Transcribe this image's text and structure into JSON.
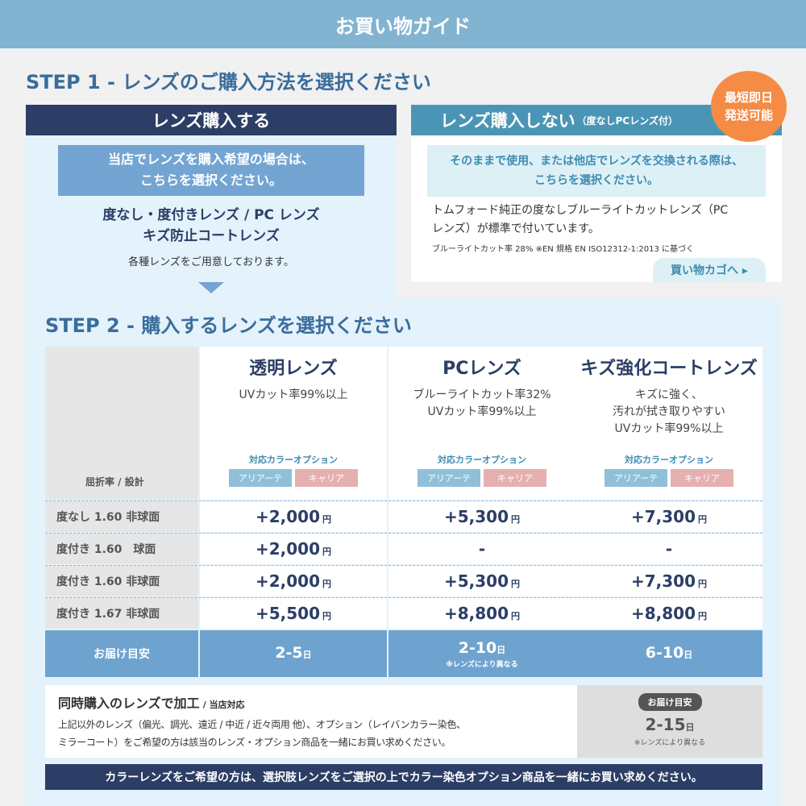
{
  "header": {
    "title": "お買い物ガイド"
  },
  "step1": {
    "title": "STEP 1 - レンズのご購入方法を選択ください",
    "left": {
      "heading": "レンズ購入する",
      "box_line1": "当店でレンズを購入希望の場合は、",
      "box_line2": "こちらを選択ください。",
      "types_line1": "度なし・度付きレンズ / PC レンズ",
      "types_line2": "キズ防止コートレンズ",
      "note": "各種レンズをご用意しております。"
    },
    "right": {
      "heading": "レンズ購入しない",
      "heading_sub": "（度なしPCレンズ付）",
      "badge_line1": "最短即日",
      "badge_line2": "発送可能",
      "box_line1": "そのままで使用、または他店でレンズを交換される際は、",
      "box_line2": "こちらを選択ください。",
      "desc_line1": "トムフォード純正の度なしブルーライトカットレンズ（PC",
      "desc_line2": "レンズ）が標準で付いています。",
      "fine": "ブルーライトカット率 28% ※EN 規格 EN ISO12312-1:2013 に基づく",
      "cart_button": "買い物カゴへ ▸"
    }
  },
  "step2": {
    "title": "STEP 2 - 購入するレンズを選択ください",
    "label_header": "屈折率 / 設計",
    "color_option_label": "対応カラーオプション",
    "color_tags": [
      "アリアーテ",
      "キャリア"
    ],
    "yen": "円",
    "day": "日",
    "columns": [
      {
        "title": "透明レンズ",
        "desc": [
          "UVカット率99%以上"
        ]
      },
      {
        "title": "PCレンズ",
        "desc": [
          "ブルーライトカット率32%",
          "UVカット率99%以上"
        ]
      },
      {
        "title": "キズ強化コートレンズ",
        "desc": [
          "キズに強く、",
          "汚れが拭き取りやすい",
          "UVカット率99%以上"
        ]
      }
    ],
    "rows": [
      {
        "label": "度なし 1.60 非球面",
        "values": [
          "+2,000",
          "+5,300",
          "+7,300"
        ]
      },
      {
        "label": "度付き 1.60　球面",
        "values": [
          "+2,000",
          "-",
          "-"
        ]
      },
      {
        "label": "度付き 1.60 非球面",
        "values": [
          "+2,000",
          "+5,300",
          "+7,300"
        ]
      },
      {
        "label": "度付き 1.67 非球面",
        "values": [
          "+5,500",
          "+8,800",
          "+8,800"
        ]
      }
    ],
    "delivery": {
      "label": "お届け目安",
      "values": [
        "2-5",
        "2-10",
        "6-10"
      ],
      "note": "※レンズにより異なる"
    }
  },
  "processing": {
    "title": "同時購入のレンズで加工",
    "title_sub": "/ 当店対応",
    "line1": "上記以外のレンズ（偏光、調光、遠近 / 中近 / 近々両用 他）、オプション（レイバンカラー染色、",
    "line2": "ミラーコート）をご希望の方は該当のレンズ・オプション商品を一緒にお買い求めください。",
    "delivery_label": "お届け目安",
    "delivery_value": "2-15",
    "delivery_note": "※レンズにより異なる"
  },
  "footer_note": "カラーレンズをご希望の方は、選択肢レンズをご選択の上でカラー染色オプション商品を一緒にお買い求めください。"
}
